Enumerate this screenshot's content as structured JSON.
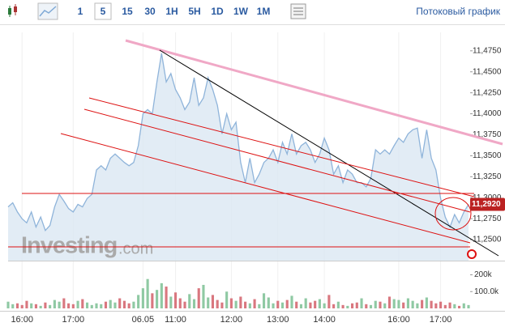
{
  "toolbar": {
    "intervals": [
      "1",
      "5",
      "15",
      "30",
      "1H",
      "5H",
      "1D",
      "1W",
      "1M"
    ],
    "active": "5",
    "stream_link": "Потоковый график"
  },
  "watermark": {
    "brand": "Investing",
    "suffix": ".com"
  },
  "chart_data": {
    "type": "line",
    "categories": [
      null,
      null,
      null,
      "16:00",
      null,
      null,
      null,
      null,
      null,
      null,
      null,
      null,
      null,
      null,
      "17:00",
      null,
      null,
      null,
      null,
      null,
      null,
      null,
      null,
      null,
      null,
      null,
      null,
      null,
      null,
      "06.05",
      null,
      null,
      null,
      null,
      null,
      null,
      "11:00",
      null,
      null,
      null,
      null,
      null,
      null,
      null,
      null,
      null,
      null,
      null,
      "12:00",
      null,
      null,
      null,
      null,
      null,
      null,
      null,
      null,
      null,
      "13:00",
      null,
      null,
      null,
      null,
      null,
      null,
      null,
      null,
      null,
      "14:00",
      null,
      null,
      null,
      null,
      null,
      null,
      null,
      null,
      null,
      null,
      null,
      null,
      null,
      null,
      null,
      "16:00",
      null,
      null,
      null,
      null,
      null,
      null,
      null,
      null,
      "17:00",
      null,
      null,
      null,
      null,
      null,
      null
    ],
    "series": [
      {
        "color": "#8fb4da",
        "fill": "#dbe7f2",
        "values": [
          11.289,
          11.294,
          11.283,
          11.275,
          11.27,
          11.283,
          11.265,
          11.277,
          11.261,
          11.267,
          11.289,
          11.304,
          11.296,
          11.287,
          11.283,
          11.292,
          11.289,
          11.299,
          11.304,
          11.333,
          11.338,
          11.333,
          11.347,
          11.352,
          11.347,
          11.342,
          11.338,
          11.342,
          11.362,
          11.4,
          11.405,
          11.4,
          11.438,
          11.472,
          11.438,
          11.448,
          11.429,
          11.419,
          11.405,
          11.414,
          11.443,
          11.41,
          11.419,
          11.443,
          11.429,
          11.41,
          11.376,
          11.4,
          11.381,
          11.39,
          11.342,
          11.318,
          11.347,
          11.318,
          11.328,
          11.342,
          11.347,
          11.357,
          11.342,
          11.366,
          11.352,
          11.376,
          11.352,
          11.362,
          11.366,
          11.357,
          11.342,
          11.352,
          11.371,
          11.357,
          11.328,
          11.338,
          11.318,
          11.333,
          11.328,
          11.318,
          11.318,
          11.313,
          11.323,
          11.357,
          11.352,
          11.357,
          11.352,
          11.362,
          11.371,
          11.366,
          11.376,
          11.381,
          11.383,
          11.347,
          11.381,
          11.347,
          11.333,
          11.299,
          11.277,
          11.265,
          11.28,
          11.27,
          11.283,
          11.292
        ]
      }
    ],
    "ylim": [
      11.225,
      11.497
    ],
    "yticks": [
      {
        "value": 11.475,
        "label": "11,4750"
      },
      {
        "value": 11.45,
        "label": "11,4500"
      },
      {
        "value": 11.425,
        "label": "11,4250"
      },
      {
        "value": 11.4,
        "label": "11,4000"
      },
      {
        "value": 11.375,
        "label": "11,3750"
      },
      {
        "value": 11.35,
        "label": "11,3500"
      },
      {
        "value": 11.325,
        "label": "11,3250"
      },
      {
        "value": 11.3,
        "label": "11,3000"
      },
      {
        "value": 11.275,
        "label": "11,2750"
      },
      {
        "value": 11.25,
        "label": "11,2500"
      }
    ],
    "last_price": {
      "value": 11.292,
      "label": "11,2920"
    },
    "volume": {
      "values": [
        40000,
        25000,
        30000,
        20000,
        45000,
        30000,
        25000,
        15000,
        35000,
        20000,
        50000,
        40000,
        60000,
        30000,
        25000,
        45000,
        55000,
        35000,
        20000,
        30000,
        25000,
        40000,
        50000,
        35000,
        60000,
        45000,
        30000,
        40000,
        80000,
        120000,
        175000,
        90000,
        110000,
        150000,
        130000,
        70000,
        95000,
        60000,
        40000,
        85000,
        55000,
        120000,
        140000,
        65000,
        80000,
        50000,
        35000,
        100000,
        60000,
        45000,
        70000,
        40000,
        30000,
        55000,
        25000,
        90000,
        65000,
        30000,
        45000,
        35000,
        50000,
        75000,
        40000,
        25000,
        60000,
        35000,
        45000,
        55000,
        30000,
        80000,
        25000,
        40000,
        20000,
        15000,
        30000,
        35000,
        60000,
        25000,
        20000,
        45000,
        40000,
        30000,
        70000,
        55000,
        50000,
        35000,
        60000,
        45000,
        30000,
        50000,
        65000,
        45000,
        30000,
        40000,
        20000,
        35000,
        25000,
        15000,
        30000,
        20000
      ],
      "up_color": "#8fc9a3",
      "down_color": "#d9777f",
      "ylim": [
        0,
        270000
      ],
      "yticks": [
        {
          "value": 200000,
          "label": "200k"
        },
        {
          "value": 100000,
          "label": "100.0k"
        }
      ]
    }
  }
}
